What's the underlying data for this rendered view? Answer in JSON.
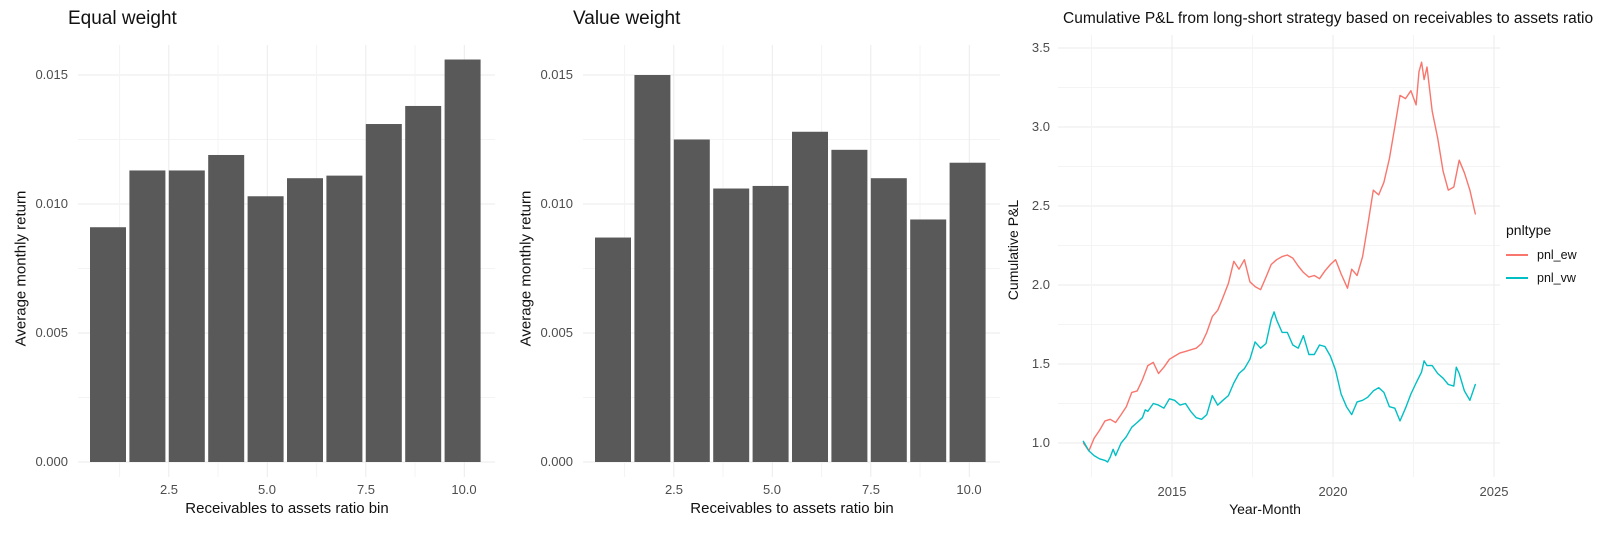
{
  "figure": {
    "background": "#FFFFFF",
    "colors": {
      "bar_fill": "#595959",
      "grid_major": "#EBEBEB",
      "grid_minor": "#F4F4F4",
      "tick_text": "#4D4D4D",
      "title_text": "#111111"
    }
  },
  "chart_data": [
    {
      "type": "bar",
      "title": "Equal weight",
      "xlabel": "Receivables to assets ratio bin",
      "ylabel": "Average monthly return",
      "categories": [
        1,
        2,
        3,
        4,
        5,
        6,
        7,
        8,
        9,
        10
      ],
      "values": [
        0.0091,
        0.0113,
        0.0113,
        0.0119,
        0.0103,
        0.011,
        0.0111,
        0.0131,
        0.0138,
        0.0156
      ],
      "x_ticks": [
        "2.5",
        "5.0",
        "7.5",
        "10.0"
      ],
      "x_tick_values": [
        2.5,
        5.0,
        7.5,
        10.0
      ],
      "y_ticks": [
        "0.000",
        "0.005",
        "0.010",
        "0.015"
      ],
      "y_tick_values": [
        0.0,
        0.005,
        0.01,
        0.015
      ],
      "ylim": [
        0,
        0.016
      ],
      "grid": true,
      "bar_color": "#595959"
    },
    {
      "type": "bar",
      "title": "Value weight",
      "xlabel": "Receivables to assets ratio bin",
      "ylabel": "Average monthly return",
      "categories": [
        1,
        2,
        3,
        4,
        5,
        6,
        7,
        8,
        9,
        10
      ],
      "values": [
        0.0087,
        0.015,
        0.0125,
        0.0106,
        0.0107,
        0.0128,
        0.0121,
        0.011,
        0.0094,
        0.0116
      ],
      "x_ticks": [
        "2.5",
        "5.0",
        "7.5",
        "10.0"
      ],
      "x_tick_values": [
        2.5,
        5.0,
        7.5,
        10.0
      ],
      "y_ticks": [
        "0.000",
        "0.005",
        "0.010",
        "0.015"
      ],
      "y_tick_values": [
        0.0,
        0.005,
        0.01,
        0.015
      ],
      "ylim": [
        0,
        0.016
      ],
      "grid": true,
      "bar_color": "#595959"
    },
    {
      "type": "line",
      "title": "Cumulative P&L from long-short strategy based on receivables to assets ratio",
      "xlabel": "Year-Month",
      "ylabel": "Cumulative P&L",
      "legend_title": "pnltype",
      "legend_position": "right",
      "x_ticks": [
        "2015",
        "2020",
        "2025"
      ],
      "x_tick_values": [
        2015,
        2020,
        2025
      ],
      "y_ticks": [
        "1.0",
        "1.5",
        "2.0",
        "2.5",
        "3.0",
        "3.5"
      ],
      "y_tick_values": [
        1.0,
        1.5,
        2.0,
        2.5,
        3.0,
        3.5
      ],
      "xlim": [
        2012.0,
        2025.3
      ],
      "ylim": [
        0.85,
        3.55
      ],
      "grid": true,
      "series": [
        {
          "name": "pnl_ew",
          "color": "#F8766D",
          "x": [
            2012.25,
            2012.42,
            2012.58,
            2012.75,
            2012.92,
            2013.08,
            2013.25,
            2013.42,
            2013.58,
            2013.75,
            2013.92,
            2014.08,
            2014.25,
            2014.42,
            2014.58,
            2014.75,
            2014.92,
            2015.08,
            2015.25,
            2015.42,
            2015.58,
            2015.75,
            2015.92,
            2016.08,
            2016.25,
            2016.42,
            2016.58,
            2016.75,
            2016.92,
            2017.08,
            2017.25,
            2017.42,
            2017.58,
            2017.75,
            2017.92,
            2018.08,
            2018.25,
            2018.42,
            2018.58,
            2018.75,
            2018.92,
            2019.08,
            2019.25,
            2019.42,
            2019.58,
            2019.75,
            2019.92,
            2020.08,
            2020.25,
            2020.45,
            2020.58,
            2020.75,
            2020.92,
            2021.08,
            2021.25,
            2021.42,
            2021.58,
            2021.75,
            2021.92,
            2022.08,
            2022.25,
            2022.42,
            2022.58,
            2022.67,
            2022.75,
            2022.83,
            2022.92,
            2023.08,
            2023.25,
            2023.42,
            2023.58,
            2023.75,
            2023.92,
            2024.08,
            2024.25,
            2024.42
          ],
          "y": [
            1.0,
            0.95,
            1.03,
            1.08,
            1.14,
            1.15,
            1.13,
            1.18,
            1.23,
            1.32,
            1.33,
            1.4,
            1.49,
            1.51,
            1.44,
            1.48,
            1.53,
            1.55,
            1.57,
            1.58,
            1.59,
            1.6,
            1.63,
            1.7,
            1.8,
            1.84,
            1.92,
            2.01,
            2.15,
            2.1,
            2.16,
            2.02,
            1.99,
            1.97,
            2.05,
            2.13,
            2.16,
            2.18,
            2.19,
            2.17,
            2.12,
            2.08,
            2.05,
            2.06,
            2.04,
            2.09,
            2.13,
            2.16,
            2.07,
            1.98,
            2.1,
            2.06,
            2.18,
            2.38,
            2.6,
            2.57,
            2.65,
            2.8,
            3.0,
            3.2,
            3.18,
            3.23,
            3.14,
            3.35,
            3.41,
            3.3,
            3.38,
            3.1,
            2.93,
            2.72,
            2.6,
            2.62,
            2.79,
            2.71,
            2.6,
            2.45
          ]
        },
        {
          "name": "pnl_vw",
          "color": "#00BFC4",
          "x": [
            2012.25,
            2012.42,
            2012.58,
            2012.75,
            2012.92,
            2013.0,
            2013.08,
            2013.17,
            2013.25,
            2013.42,
            2013.58,
            2013.75,
            2013.92,
            2014.08,
            2014.17,
            2014.25,
            2014.42,
            2014.58,
            2014.75,
            2014.92,
            2015.08,
            2015.25,
            2015.42,
            2015.58,
            2015.75,
            2015.92,
            2016.08,
            2016.25,
            2016.42,
            2016.58,
            2016.75,
            2016.92,
            2017.08,
            2017.25,
            2017.42,
            2017.58,
            2017.75,
            2017.92,
            2018.08,
            2018.17,
            2018.25,
            2018.42,
            2018.58,
            2018.75,
            2018.92,
            2019.08,
            2019.25,
            2019.42,
            2019.58,
            2019.75,
            2019.92,
            2020.08,
            2020.25,
            2020.42,
            2020.58,
            2020.75,
            2020.92,
            2021.08,
            2021.25,
            2021.42,
            2021.58,
            2021.75,
            2021.92,
            2022.08,
            2022.25,
            2022.42,
            2022.58,
            2022.75,
            2022.83,
            2022.92,
            2023.08,
            2023.25,
            2023.42,
            2023.58,
            2023.75,
            2023.83,
            2023.92,
            2024.08,
            2024.25,
            2024.42
          ],
          "y": [
            1.01,
            0.95,
            0.92,
            0.9,
            0.89,
            0.88,
            0.91,
            0.96,
            0.92,
            1.0,
            1.04,
            1.1,
            1.13,
            1.16,
            1.21,
            1.2,
            1.25,
            1.24,
            1.22,
            1.28,
            1.27,
            1.24,
            1.25,
            1.2,
            1.16,
            1.15,
            1.18,
            1.3,
            1.24,
            1.27,
            1.3,
            1.38,
            1.44,
            1.47,
            1.53,
            1.64,
            1.6,
            1.63,
            1.78,
            1.83,
            1.78,
            1.7,
            1.7,
            1.62,
            1.6,
            1.68,
            1.56,
            1.56,
            1.62,
            1.61,
            1.55,
            1.46,
            1.31,
            1.23,
            1.18,
            1.26,
            1.27,
            1.29,
            1.33,
            1.35,
            1.32,
            1.23,
            1.22,
            1.14,
            1.22,
            1.31,
            1.38,
            1.45,
            1.52,
            1.49,
            1.49,
            1.44,
            1.41,
            1.37,
            1.36,
            1.48,
            1.44,
            1.33,
            1.27,
            1.37
          ]
        }
      ]
    }
  ]
}
